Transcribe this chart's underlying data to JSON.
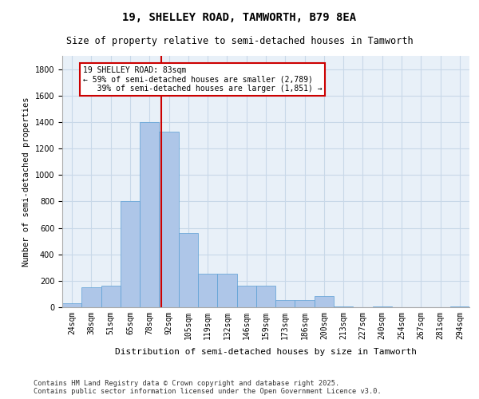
{
  "title1": "19, SHELLEY ROAD, TAMWORTH, B79 8EA",
  "title2": "Size of property relative to semi-detached houses in Tamworth",
  "xlabel": "Distribution of semi-detached houses by size in Tamworth",
  "ylabel": "Number of semi-detached properties",
  "categories": [
    "24sqm",
    "38sqm",
    "51sqm",
    "65sqm",
    "78sqm",
    "92sqm",
    "105sqm",
    "119sqm",
    "132sqm",
    "146sqm",
    "159sqm",
    "173sqm",
    "186sqm",
    "200sqm",
    "213sqm",
    "227sqm",
    "240sqm",
    "254sqm",
    "267sqm",
    "281sqm",
    "294sqm"
  ],
  "values": [
    30,
    150,
    165,
    800,
    1400,
    1330,
    560,
    255,
    255,
    160,
    160,
    55,
    55,
    85,
    5,
    0,
    5,
    0,
    0,
    0,
    5
  ],
  "bar_color": "#aec6e8",
  "bar_edge_color": "#5a9fd4",
  "grid_color": "#c8d8e8",
  "background_color": "#e8f0f8",
  "vline_x": 4.6,
  "vline_color": "#cc0000",
  "annotation_text": "19 SHELLEY ROAD: 83sqm\n← 59% of semi-detached houses are smaller (2,789)\n   39% of semi-detached houses are larger (1,851) →",
  "annotation_box_color": "#ffffff",
  "annotation_box_edge": "#cc0000",
  "footnote": "Contains HM Land Registry data © Crown copyright and database right 2025.\nContains public sector information licensed under the Open Government Licence v3.0.",
  "ylim": [
    0,
    1900
  ],
  "yticks": [
    0,
    200,
    400,
    600,
    800,
    1000,
    1200,
    1400,
    1600,
    1800
  ]
}
